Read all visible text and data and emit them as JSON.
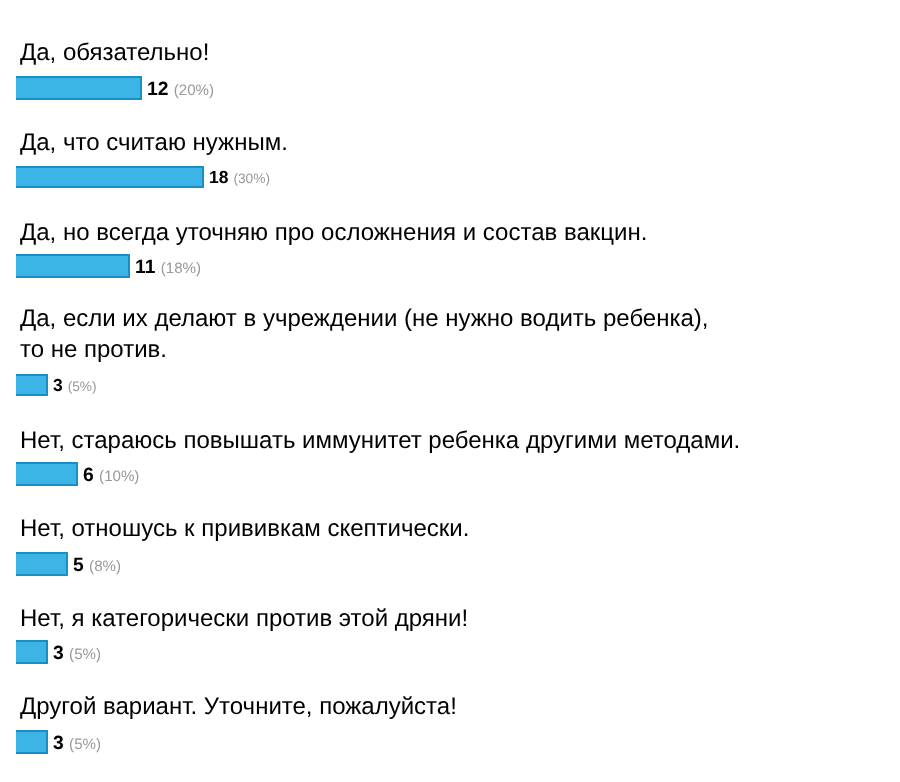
{
  "chart_data": {
    "type": "bar",
    "orientation": "horizontal",
    "color": "#3cb4e6",
    "categories": [
      "Да, обязательно!",
      "Да, что считаю нужным.",
      "Да, но всегда уточняю про осложнения и состав вакцин.",
      "Да, если их делают в учреждении (не нужно водить ребенка),\nто не против.",
      "Нет, стараюсь повышать иммунитет ребенка другими методами.",
      "Нет, отношусь к прививкам скептически.",
      "Нет, я категорически против этой дряни!",
      "Другой вариант. Уточните, пожалуйста!"
    ],
    "values": [
      12,
      18,
      11,
      3,
      6,
      5,
      3,
      3
    ],
    "value_labels": [
      "12 (20%)",
      "18 (30%)",
      "11 (18%)",
      "3 (5%)",
      "6 (10%)",
      "5 (8%)",
      "3 (5%)",
      "3 (5%)"
    ]
  }
}
